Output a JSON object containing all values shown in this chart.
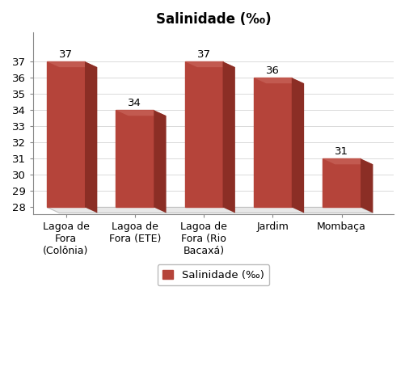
{
  "title": "Salinidade (‰)",
  "categories": [
    "Lagoa de\nFora\n(Colônia)",
    "Lagoa de\nFora (ETE)",
    "Lagoa de\nFora (Rio\nBacaxá)",
    "Jardim",
    "Mombаça"
  ],
  "values": [
    37,
    34,
    37,
    36,
    31
  ],
  "bar_color": "#b5443a",
  "ylim": [
    28,
    38
  ],
  "yticks": [
    28,
    29,
    30,
    31,
    32,
    33,
    34,
    35,
    36,
    37
  ],
  "legend_label": "Salinidade (‰)",
  "legend_color": "#b5443a",
  "background_color": "#ffffff",
  "title_fontsize": 12,
  "label_fontsize": 9,
  "tick_fontsize": 9.5,
  "bar_value_fontsize": 9.5,
  "floor_color": "#d8d8d8",
  "floor_depth": 0.18
}
